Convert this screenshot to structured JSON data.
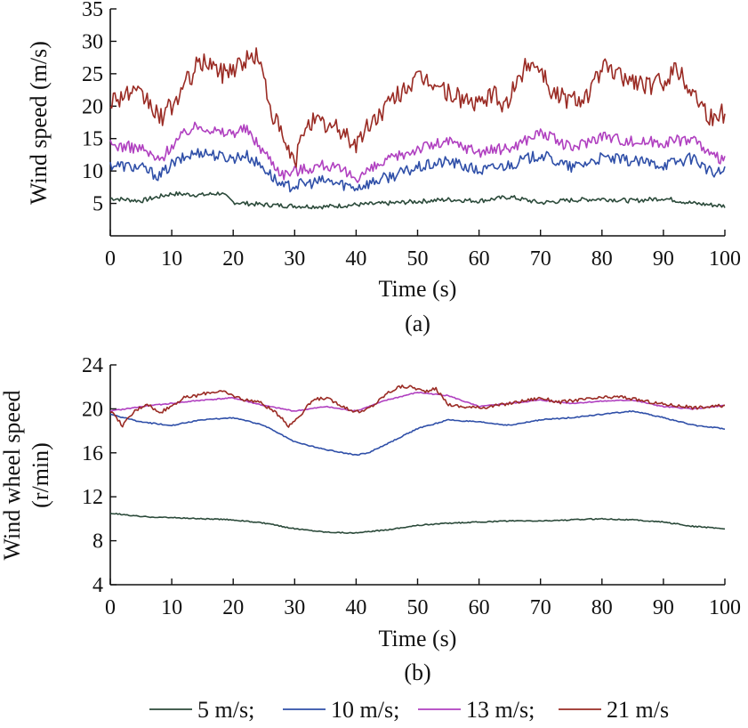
{
  "chart_data": [
    {
      "type": "line",
      "panel_label": "(a)",
      "xlabel": "Time (s)",
      "ylabel": "Wind speed (m/s)",
      "xlim": [
        0,
        100
      ],
      "ylim": [
        0,
        35
      ],
      "xticks": [
        0,
        10,
        20,
        30,
        40,
        50,
        60,
        70,
        80,
        90,
        100
      ],
      "yticks": [
        5,
        10,
        15,
        20,
        25,
        30,
        35
      ],
      "grid": false,
      "series": [
        {
          "name": "5 m/s",
          "color": "#2b4a3a",
          "x": [
            0,
            5,
            10,
            15,
            18,
            20,
            22,
            25,
            30,
            35,
            40,
            45,
            50,
            55,
            60,
            65,
            70,
            75,
            80,
            85,
            90,
            95,
            100
          ],
          "y": [
            5.8,
            5.4,
            6.5,
            6.3,
            6.6,
            5.2,
            5.0,
            4.8,
            4.6,
            4.5,
            4.8,
            5.0,
            5.3,
            5.6,
            5.4,
            6.0,
            5.1,
            5.5,
            5.7,
            5.4,
            5.8,
            5.0,
            4.6
          ]
        },
        {
          "name": "10 m/s",
          "color": "#2f4fa8",
          "x": [
            0,
            5,
            8,
            10,
            13,
            15,
            18,
            20,
            22,
            25,
            28,
            30,
            35,
            40,
            45,
            50,
            55,
            60,
            65,
            70,
            75,
            80,
            85,
            90,
            95,
            98,
            100
          ],
          "y": [
            11,
            10.5,
            9.2,
            11,
            12.5,
            13,
            12.2,
            12,
            12.5,
            10.5,
            7.5,
            7.8,
            8.5,
            7.5,
            9,
            10.5,
            11.5,
            10,
            11,
            12.5,
            10.5,
            12,
            11.5,
            11,
            12,
            9.5,
            10
          ]
        },
        {
          "name": "13 m/s",
          "color": "#b040c0",
          "x": [
            0,
            5,
            8,
            10,
            13,
            15,
            18,
            20,
            22,
            25,
            28,
            30,
            35,
            40,
            45,
            50,
            55,
            60,
            65,
            70,
            75,
            80,
            85,
            90,
            95,
            98,
            100
          ],
          "y": [
            14,
            13.5,
            11.5,
            14,
            16.5,
            17,
            15.8,
            16,
            16.5,
            13,
            9.5,
            10,
            11,
            9,
            11.5,
            13.5,
            14.5,
            13,
            13.5,
            16,
            13.5,
            15.5,
            14.5,
            14.5,
            15,
            12,
            12
          ]
        },
        {
          "name": "21 m/s",
          "color": "#9a2b24",
          "x": [
            0,
            3,
            6,
            8,
            10,
            12,
            14,
            16,
            18,
            20,
            22,
            24,
            26,
            28,
            30,
            32,
            35,
            38,
            40,
            42,
            45,
            48,
            50,
            52,
            55,
            58,
            60,
            62,
            64,
            66,
            68,
            70,
            72,
            75,
            78,
            80,
            82,
            85,
            88,
            90,
            92,
            95,
            98,
            100
          ],
          "y": [
            21,
            22,
            21,
            18,
            20,
            23,
            26,
            27,
            25,
            26,
            27,
            28,
            20,
            15,
            11,
            18,
            17,
            16,
            14,
            17,
            20,
            23,
            24,
            24,
            22,
            21,
            20,
            22,
            20,
            23,
            27,
            26,
            22,
            21,
            22,
            26,
            25,
            24,
            23,
            24,
            26,
            22,
            18,
            19
          ]
        }
      ]
    },
    {
      "type": "line",
      "panel_label": "(b)",
      "xlabel": "Time (s)",
      "ylabel": [
        "Wind wheel speed",
        "(r/min)"
      ],
      "xlim": [
        0,
        100
      ],
      "ylim": [
        4,
        24
      ],
      "xticks": [
        0,
        10,
        20,
        30,
        40,
        50,
        60,
        70,
        80,
        90,
        100
      ],
      "yticks": [
        4,
        8,
        12,
        16,
        20,
        24
      ],
      "grid": false,
      "series": [
        {
          "name": "5 m/s",
          "color": "#2b4a3a",
          "x": [
            0,
            5,
            10,
            15,
            20,
            25,
            30,
            35,
            40,
            45,
            50,
            55,
            60,
            65,
            70,
            75,
            80,
            85,
            90,
            95,
            100
          ],
          "y": [
            10.5,
            10.2,
            10.1,
            10.0,
            9.9,
            9.6,
            9.1,
            8.8,
            8.7,
            9.0,
            9.4,
            9.6,
            9.7,
            9.8,
            9.8,
            9.9,
            10.0,
            9.9,
            9.7,
            9.3,
            9.1
          ]
        },
        {
          "name": "10 m/s",
          "color": "#2f4fa8",
          "x": [
            0,
            5,
            10,
            15,
            20,
            25,
            30,
            35,
            40,
            42,
            45,
            50,
            55,
            60,
            65,
            70,
            75,
            80,
            85,
            90,
            95,
            100
          ],
          "y": [
            19.5,
            18.8,
            18.5,
            19.0,
            19.2,
            18.5,
            17.0,
            16.3,
            15.8,
            16.0,
            16.8,
            18.2,
            19.0,
            18.8,
            18.5,
            19.0,
            19.2,
            19.5,
            19.8,
            19.2,
            18.5,
            18.2
          ]
        },
        {
          "name": "13 m/s",
          "color": "#b040c0",
          "x": [
            0,
            5,
            10,
            15,
            20,
            25,
            30,
            35,
            40,
            45,
            50,
            55,
            60,
            65,
            70,
            75,
            80,
            85,
            90,
            95,
            100
          ],
          "y": [
            19.8,
            20.2,
            20.5,
            20.8,
            21.0,
            20.3,
            19.8,
            20.2,
            19.8,
            20.8,
            21.5,
            21.2,
            20.2,
            20.5,
            20.8,
            20.5,
            20.7,
            20.8,
            20.2,
            20.0,
            20.3
          ]
        },
        {
          "name": "21 m/s",
          "color": "#9a2b24",
          "x": [
            0,
            2,
            4,
            6,
            8,
            10,
            12,
            14,
            16,
            18,
            20,
            22,
            24,
            26,
            28,
            29,
            31,
            33,
            35,
            37,
            39,
            41,
            43,
            45,
            47,
            49,
            51,
            53,
            55,
            57,
            60,
            63,
            66,
            70,
            73,
            76,
            80,
            83,
            86,
            89,
            92,
            95,
            98,
            100
          ],
          "y": [
            19.8,
            18.5,
            19.8,
            20.5,
            19.6,
            20.3,
            21.0,
            21.2,
            21.5,
            21.6,
            21.2,
            20.8,
            20.7,
            20.0,
            19.2,
            18.4,
            19.5,
            20.8,
            21.0,
            20.5,
            19.9,
            19.7,
            20.4,
            21.4,
            22.0,
            22.0,
            21.6,
            21.8,
            20.4,
            20.2,
            20.1,
            20.3,
            20.6,
            21.0,
            20.6,
            20.8,
            21.0,
            21.1,
            20.8,
            20.5,
            20.3,
            20.1,
            20.2,
            20.3
          ]
        }
      ]
    }
  ],
  "legend": {
    "placement": "bottom",
    "items": [
      {
        "label": "5 m/s;",
        "color": "#2b4a3a"
      },
      {
        "label": "10 m/s;",
        "color": "#2f4fa8"
      },
      {
        "label": "13 m/s;",
        "color": "#b040c0"
      },
      {
        "label": "21 m/s",
        "color": "#9a2b24"
      }
    ]
  }
}
